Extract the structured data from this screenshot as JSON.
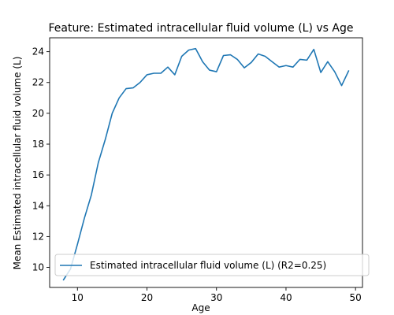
{
  "chart_data": {
    "type": "line",
    "title": "Feature: Estimated intracellular fluid volume (L) vs Age",
    "xlabel": "Age",
    "ylabel": "Mean Estimated intracellular fluid volume (L)",
    "xlim": [
      6.0,
      51.0
    ],
    "ylim": [
      8.7,
      24.9
    ],
    "xticks": [
      10,
      20,
      30,
      40,
      50
    ],
    "yticks": [
      10,
      12,
      14,
      16,
      18,
      20,
      22,
      24
    ],
    "grid": false,
    "legend_position": "lower-left",
    "series": [
      {
        "name": "Estimated intracellular fluid volume (L) (R2=0.25)",
        "color": "#1f77b4",
        "x": [
          8,
          9,
          10,
          11,
          12,
          13,
          14,
          15,
          16,
          17,
          18,
          19,
          20,
          21,
          22,
          23,
          24,
          25,
          26,
          27,
          28,
          29,
          30,
          31,
          32,
          33,
          34,
          35,
          36,
          37,
          38,
          39,
          40,
          41,
          42,
          43,
          44,
          45,
          46,
          47,
          48,
          49
        ],
        "y": [
          9.2,
          9.9,
          11.5,
          13.2,
          14.7,
          16.8,
          18.3,
          20.0,
          21.0,
          21.6,
          21.65,
          22.0,
          22.5,
          22.6,
          22.6,
          23.0,
          22.5,
          23.7,
          24.1,
          24.2,
          23.35,
          22.8,
          22.7,
          23.75,
          23.8,
          23.5,
          22.95,
          23.3,
          23.85,
          23.7,
          23.35,
          23.0,
          23.1,
          23.0,
          23.5,
          23.45,
          24.15,
          22.65,
          23.35,
          22.7,
          21.8,
          22.75
        ]
      }
    ]
  }
}
